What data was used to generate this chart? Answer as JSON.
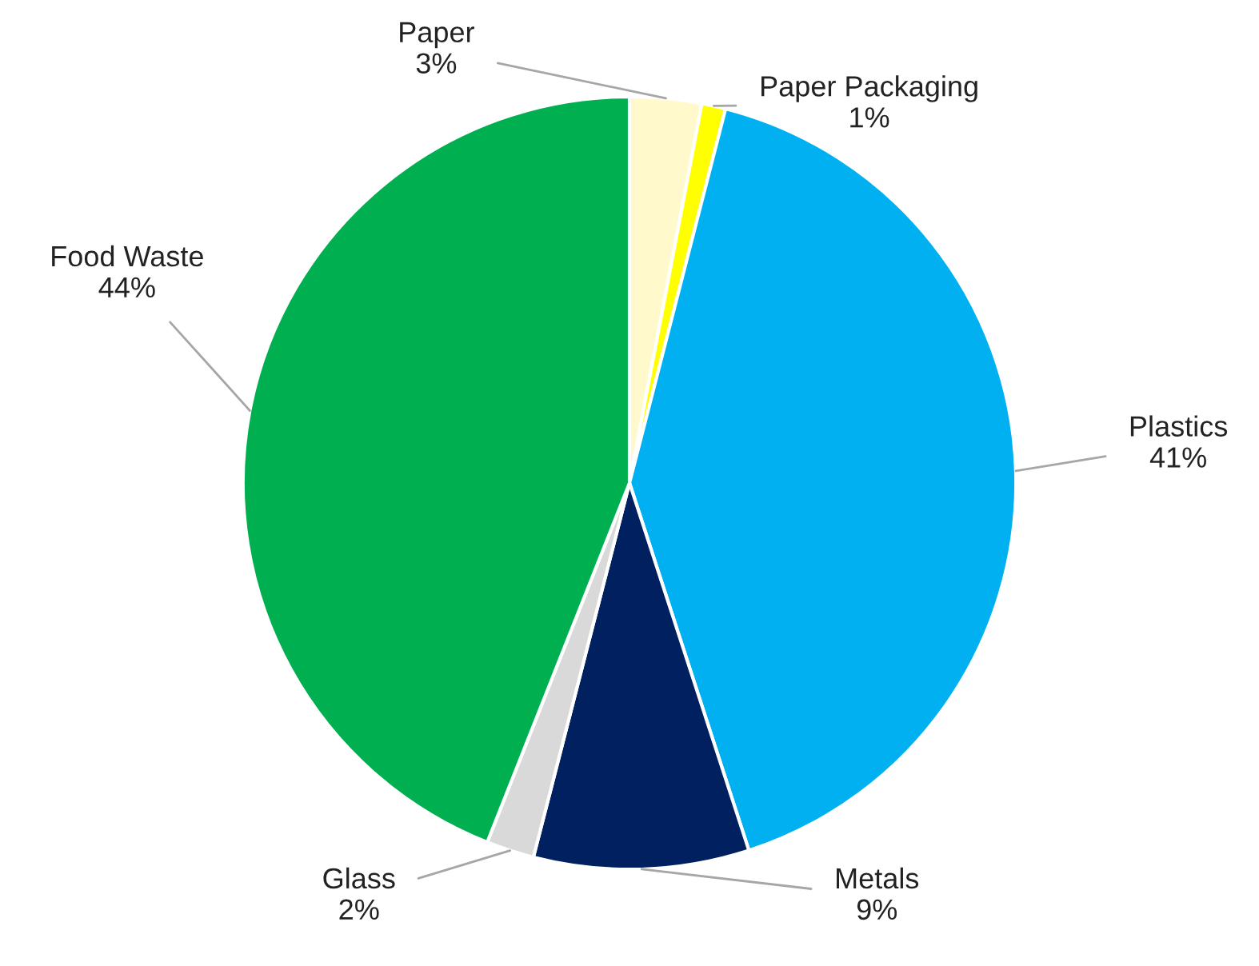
{
  "chart_data": {
    "type": "pie",
    "categories": [
      "Paper",
      "Paper Packaging",
      "Plastics",
      "Metals",
      "Glass",
      "Food Waste"
    ],
    "values": [
      3,
      1,
      41,
      9,
      2,
      44
    ],
    "value_labels": [
      "3%",
      "1%",
      "41%",
      "9%",
      "2%",
      "44%"
    ],
    "colors": [
      "#fff9cc",
      "#ffff00",
      "#00b0f0",
      "#002060",
      "#d9d9d9",
      "#00b050"
    ],
    "legend": false
  }
}
